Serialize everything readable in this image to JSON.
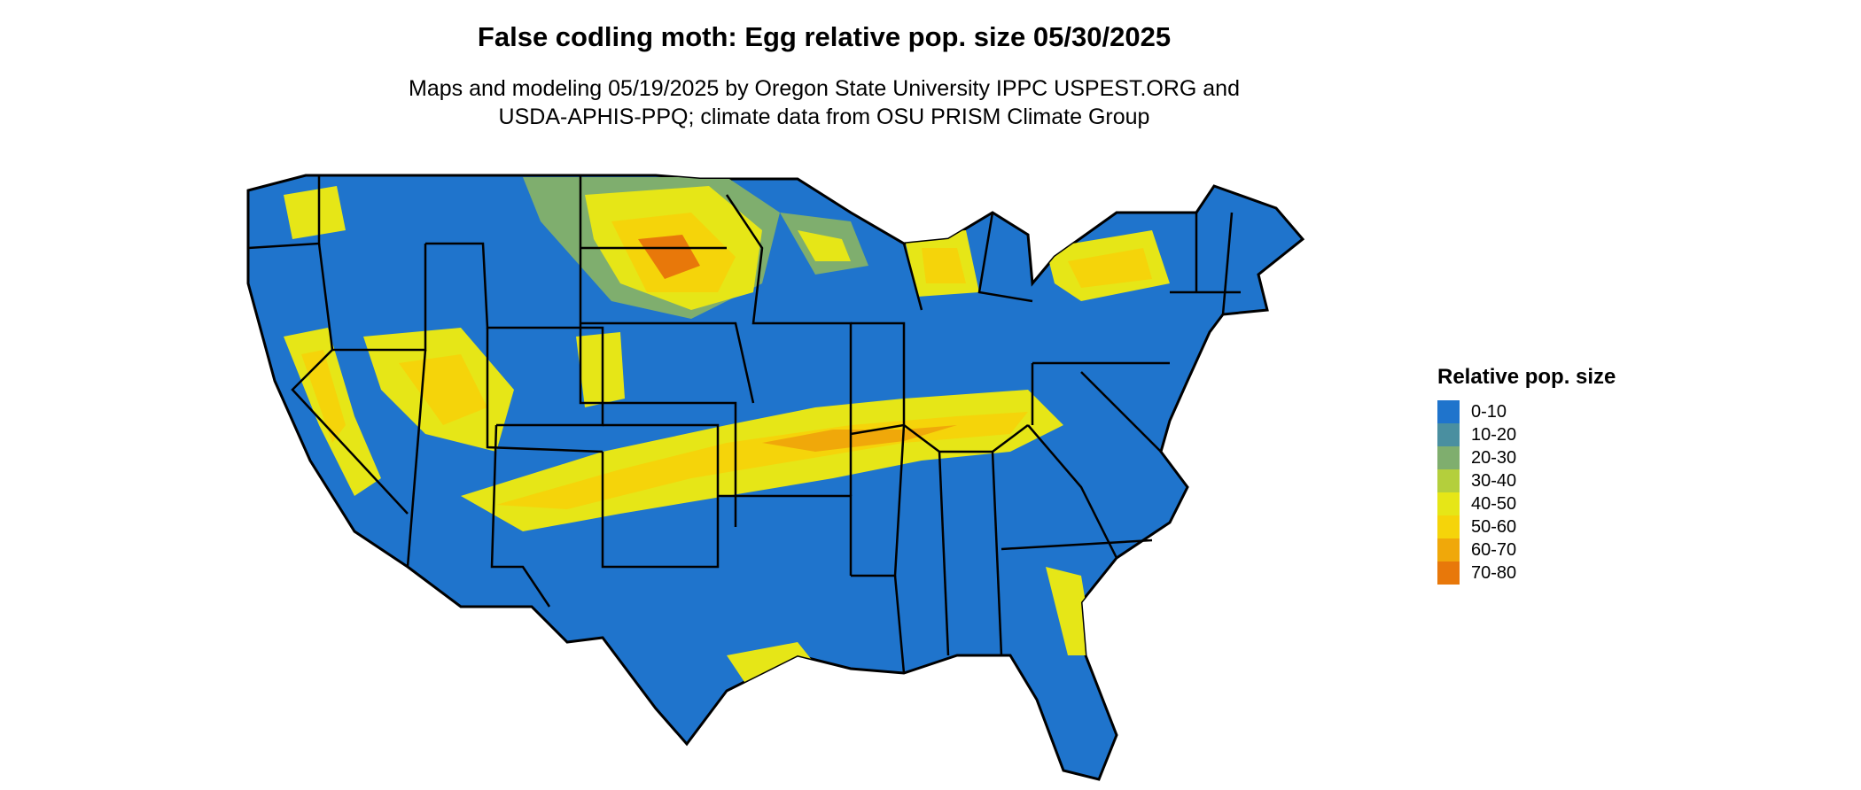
{
  "title": "False codling moth: Egg relative pop. size 05/30/2025",
  "subtitle_line1": "Maps and modeling 05/19/2025 by Oregon State University IPPC USPEST.ORG and",
  "subtitle_line2": "USDA-APHIS-PPQ; climate data from OSU PRISM Climate Group",
  "legend": {
    "title": "Relative pop. size",
    "items": [
      {
        "label": "0-10",
        "color": "#1f74cc"
      },
      {
        "label": "10-20",
        "color": "#4a8fa0"
      },
      {
        "label": "20-30",
        "color": "#7fae6e"
      },
      {
        "label": "30-40",
        "color": "#b4cf3c"
      },
      {
        "label": "40-50",
        "color": "#e6e617"
      },
      {
        "label": "50-60",
        "color": "#f5d40a"
      },
      {
        "label": "60-70",
        "color": "#f0a80a"
      },
      {
        "label": "70-80",
        "color": "#e8780a"
      }
    ]
  },
  "map": {
    "region": "contiguous-united-states",
    "base_color": "#1f74cc",
    "border_color": "#000000"
  }
}
